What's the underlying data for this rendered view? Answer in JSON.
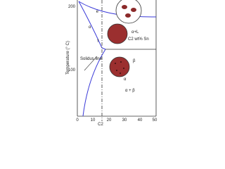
{
  "axes": {
    "y_label": "Temperature (° C)",
    "y_ticks": [
      "100",
      "200"
    ],
    "x_ticks": [
      "0",
      "10",
      "20",
      "30",
      "40",
      "50"
    ],
    "x_marker": "C2"
  },
  "regions": [
    {
      "label": "α"
    },
    {
      "label": "α+L"
    },
    {
      "label": "C2 wt% Sn"
    },
    {
      "label": "Solidus line"
    },
    {
      "label": "β"
    },
    {
      "label": "α"
    },
    {
      "label": "α + β"
    }
  ],
  "points": [
    {
      "label": "f"
    },
    {
      "label": "e"
    }
  ]
}
